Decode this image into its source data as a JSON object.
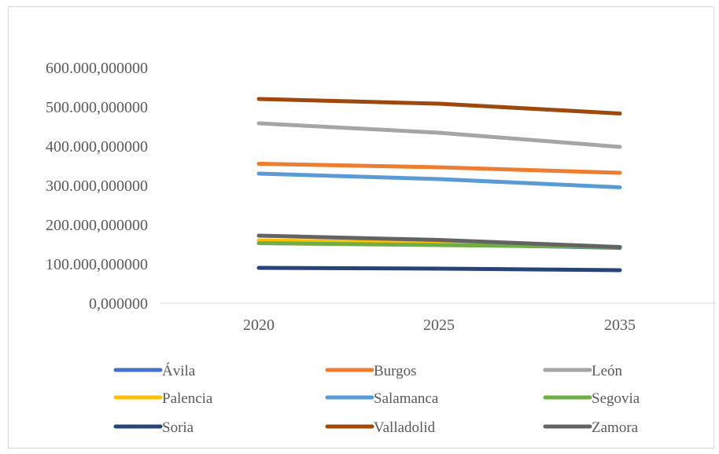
{
  "chart_data": {
    "type": "line",
    "title": "",
    "xlabel": "",
    "ylabel": "",
    "categories": [
      "2020",
      "2025",
      "2035"
    ],
    "ylim": [
      0,
      600000000
    ],
    "yticks": [
      0,
      100000000,
      200000000,
      300000000,
      400000000,
      500000000,
      600000000
    ],
    "ytick_labels": [
      "0,000000",
      "100.000,000000",
      "200.000,000000",
      "300.000,000000",
      "400.000,000000",
      "500.000,000000",
      "600.000,000000"
    ],
    "grid": false,
    "legend_position": "bottom",
    "series": [
      {
        "name": "Ávila",
        "color": "#4472c4",
        "values": [
          153000000,
          150000000,
          141000000
        ]
      },
      {
        "name": "Burgos",
        "color": "#ed7d31",
        "values": [
          355000000,
          346000000,
          332000000
        ]
      },
      {
        "name": "León",
        "color": "#a5a5a5",
        "values": [
          458000000,
          434000000,
          398000000
        ]
      },
      {
        "name": "Palencia",
        "color": "#ffc000",
        "values": [
          160000000,
          153000000,
          143000000
        ]
      },
      {
        "name": "Salamanca",
        "color": "#5b9bd5",
        "values": [
          330000000,
          316000000,
          295000000
        ]
      },
      {
        "name": "Segovia",
        "color": "#70ad47",
        "values": [
          153000000,
          148000000,
          143000000
        ]
      },
      {
        "name": "Soria",
        "color": "#264478",
        "values": [
          90000000,
          88000000,
          84000000
        ]
      },
      {
        "name": "Valladolid",
        "color": "#9e480e",
        "values": [
          520000000,
          508000000,
          483000000
        ]
      },
      {
        "name": "Zamora",
        "color": "#636363",
        "values": [
          172000000,
          161000000,
          143000000
        ]
      }
    ]
  }
}
